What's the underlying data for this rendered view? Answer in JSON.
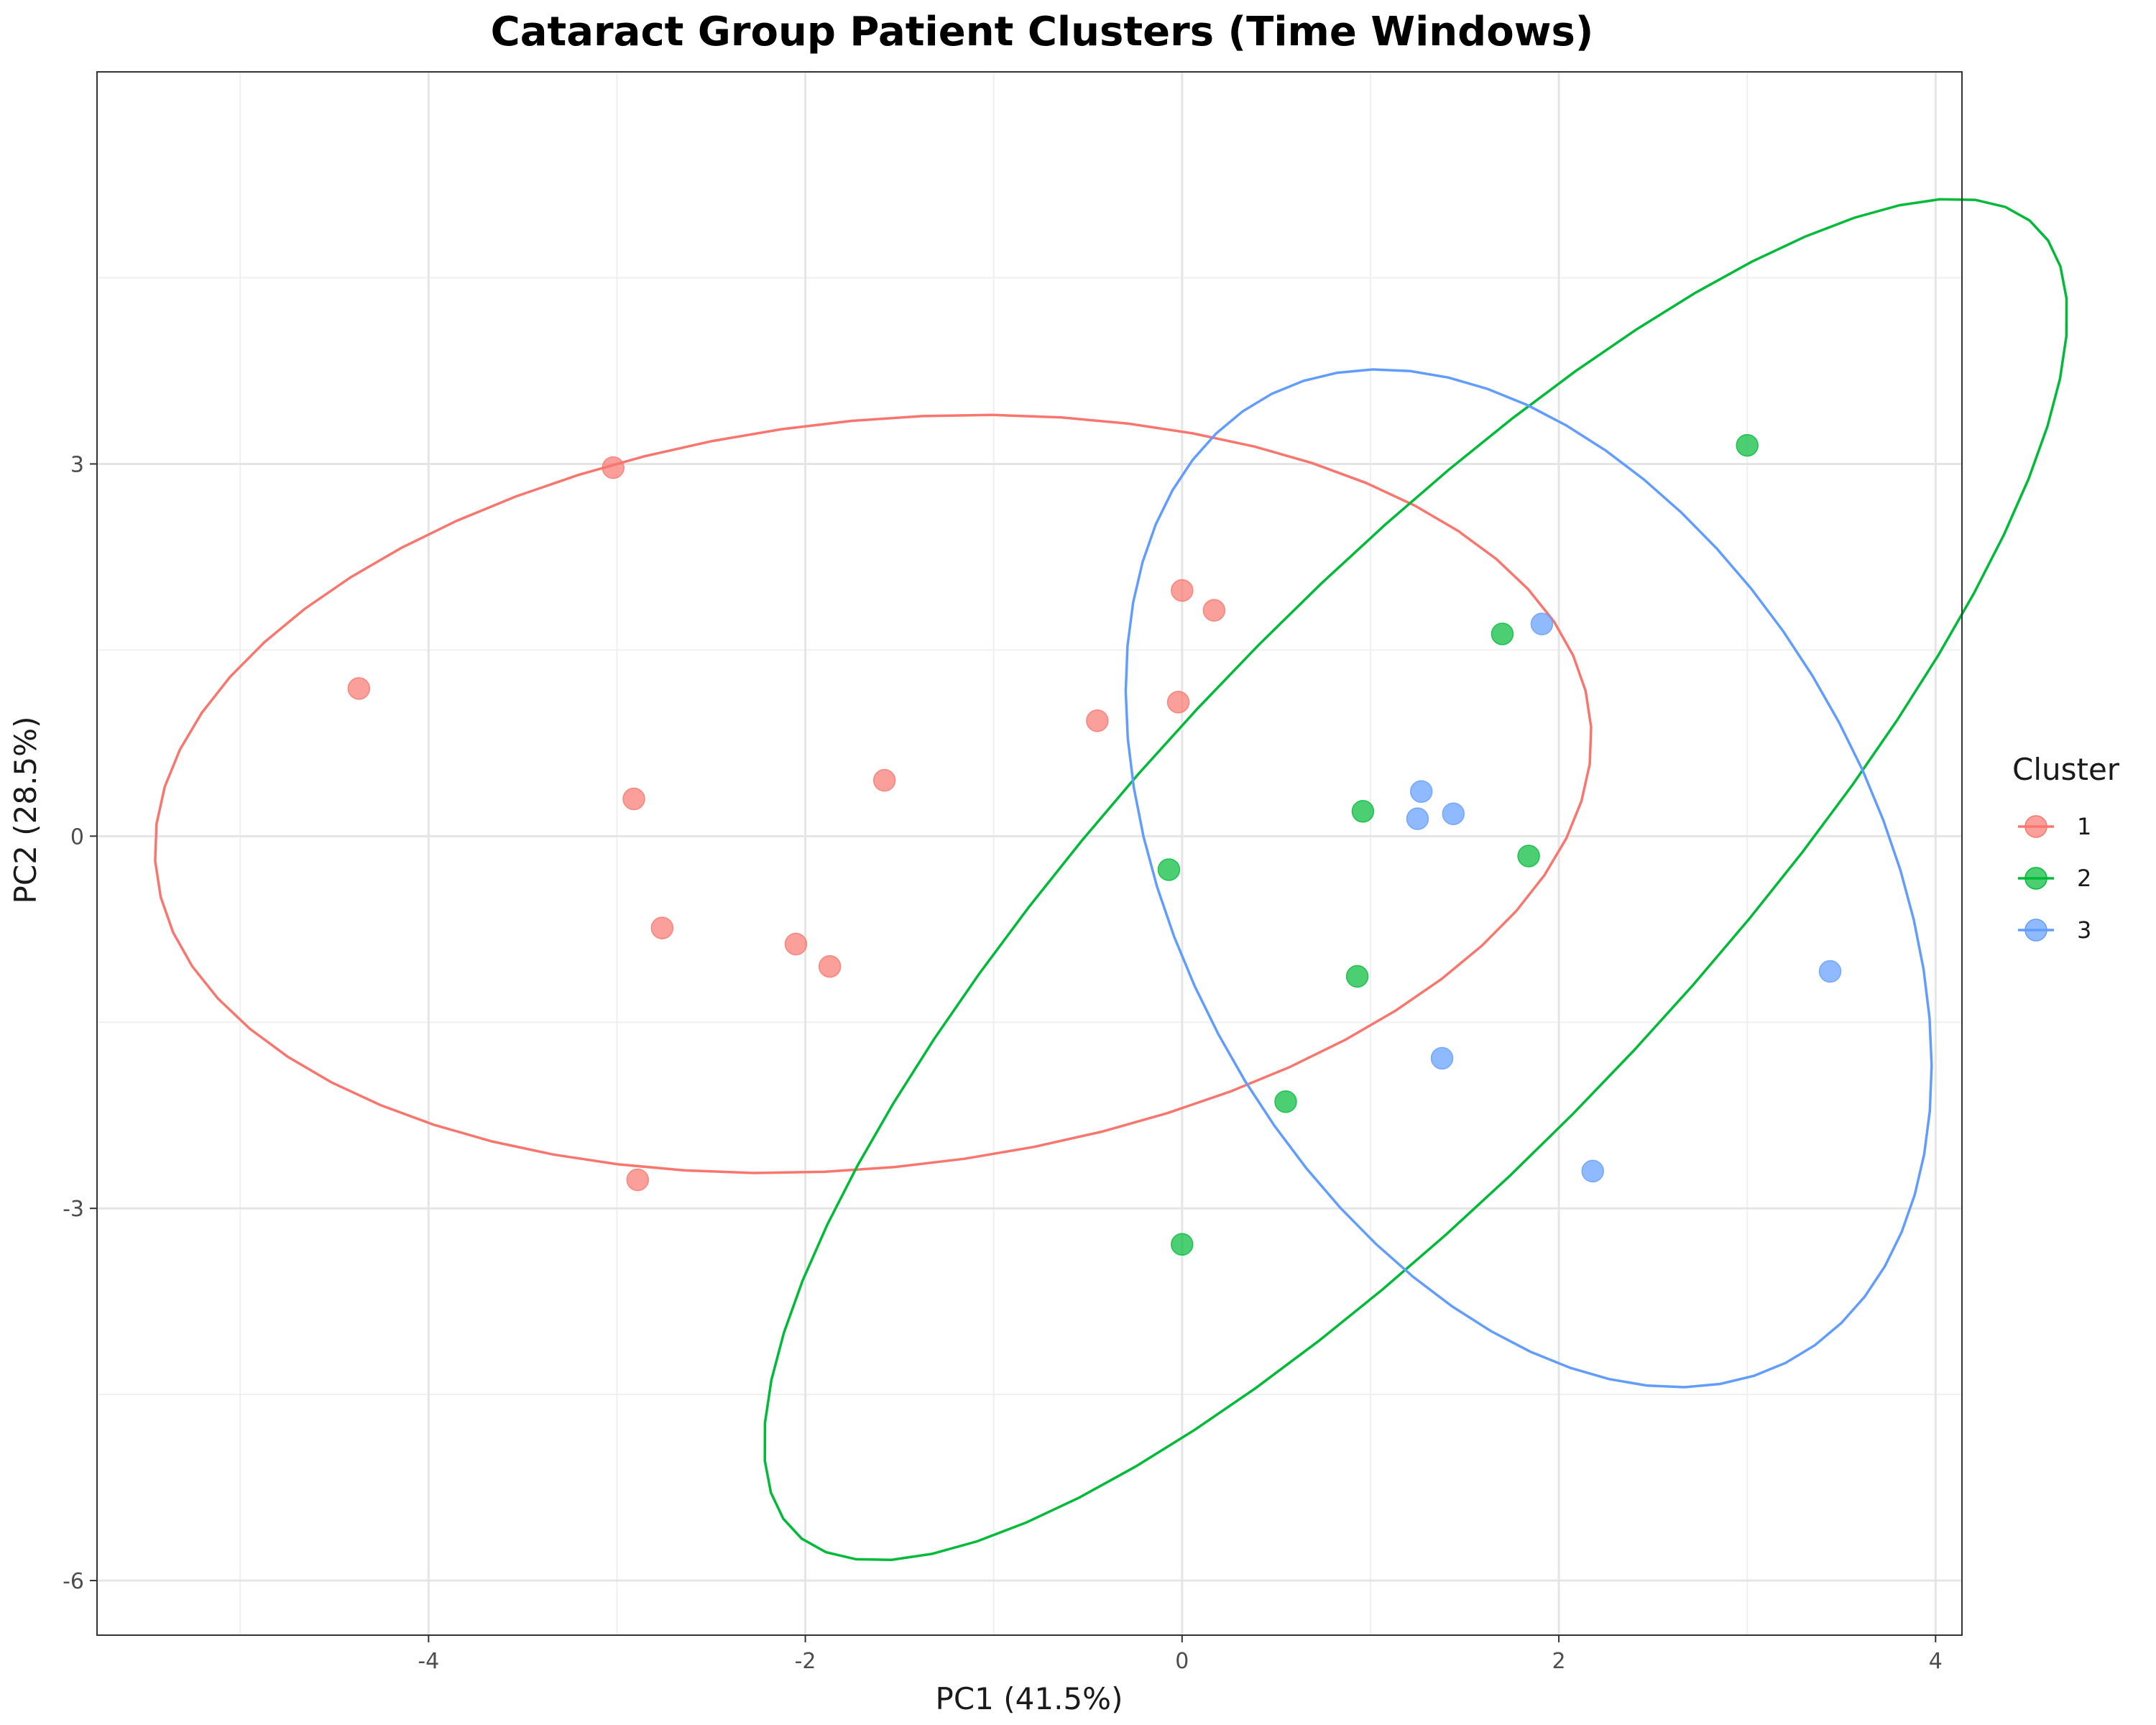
{
  "chart_data": {
    "type": "scatter",
    "title": "Cataract Group Patient Clusters (Time Windows)",
    "xlabel": "PC1 (41.5%)",
    "ylabel": "PC2 (28.5%)",
    "xlim": [
      -5.76,
      4.14
    ],
    "ylim": [
      -6.44,
      6.16
    ],
    "x_ticks": [
      -4,
      -2,
      0,
      2,
      4
    ],
    "x_tick_labels": [
      "-4",
      "-2",
      "0",
      "2",
      "4"
    ],
    "y_ticks": [
      -6,
      -3,
      0,
      3
    ],
    "y_tick_labels": [
      "-6",
      "-3",
      "0",
      "3"
    ],
    "grid": true,
    "legend": {
      "title": "Cluster",
      "position": "right"
    },
    "series": [
      {
        "name": "1",
        "color": "#F8766D",
        "points": [
          [
            -4.37,
            1.19
          ],
          [
            -3.02,
            2.97
          ],
          [
            -2.91,
            0.3
          ],
          [
            -2.76,
            -0.74
          ],
          [
            -2.05,
            -0.87
          ],
          [
            -1.87,
            -1.05
          ],
          [
            -1.58,
            0.45
          ],
          [
            -0.45,
            0.93
          ],
          [
            0.0,
            1.98
          ],
          [
            0.17,
            1.82
          ],
          [
            -0.02,
            1.08
          ],
          [
            -2.89,
            -2.77
          ]
        ],
        "ellipse": {
          "center": [
            -1.64,
            0.34
          ],
          "semi_major": 3.88,
          "semi_minor": 2.97,
          "angle_deg": 16.7
        }
      },
      {
        "name": "2",
        "color": "#00BA38",
        "points": [
          [
            3.0,
            3.15
          ],
          [
            1.7,
            1.63
          ],
          [
            0.96,
            0.2
          ],
          [
            1.84,
            -0.16
          ],
          [
            -0.07,
            -0.27
          ],
          [
            0.93,
            -1.13
          ],
          [
            0.55,
            -2.14
          ],
          [
            0.0,
            -3.29
          ]
        ],
        "ellipse": {
          "center": [
            1.24,
            -0.35
          ],
          "semi_major": 6.26,
          "semi_minor": 1.7,
          "angle_deg": 60.0
        }
      },
      {
        "name": "3",
        "color": "#619CFF",
        "points": [
          [
            1.91,
            1.71
          ],
          [
            1.27,
            0.36
          ],
          [
            1.25,
            0.14
          ],
          [
            1.44,
            0.18
          ],
          [
            3.44,
            -1.09
          ],
          [
            1.38,
            -1.79
          ],
          [
            2.18,
            -2.7
          ]
        ],
        "ellipse": {
          "center": [
            1.84,
            -0.34
          ],
          "semi_major": 4.2,
          "semi_minor": 1.94,
          "angle_deg": 104.0
        }
      }
    ]
  }
}
